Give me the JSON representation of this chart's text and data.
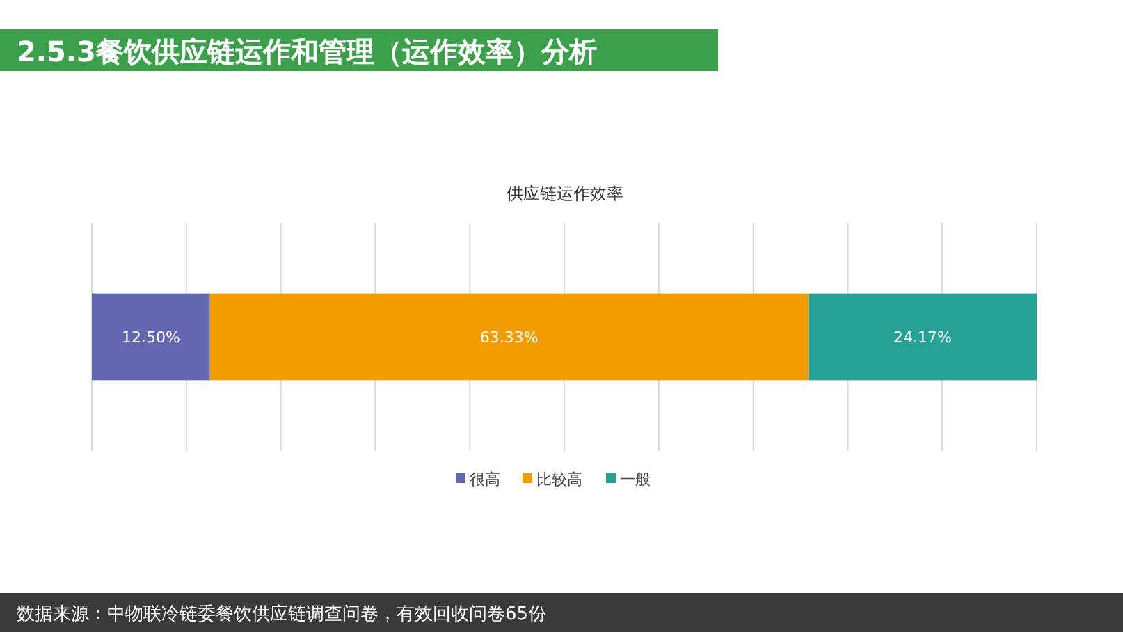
{
  "chart_data": {
    "type": "bar",
    "orientation": "horizontal",
    "stacked": true,
    "title": "2.5.3餐饮供应链运作和管理（运作效率）分析",
    "subtitle": "供应链运作效率",
    "categories": [
      null
    ],
    "series": [
      {
        "name": "很高",
        "color": "#6367b0",
        "values": [
          12.5
        ],
        "value_labels": [
          "12.50%"
        ]
      },
      {
        "name": "比较高",
        "color": "#f29c00",
        "values": [
          63.33
        ],
        "value_labels": [
          "63.33%"
        ]
      },
      {
        "name": "一般",
        "color": "#26a196",
        "values": [
          24.17
        ],
        "value_labels": [
          "24.17%"
        ]
      }
    ],
    "xlim": [
      0,
      100
    ],
    "xticks": [
      {
        "value": 0,
        "label": null
      },
      {
        "value": 10,
        "label": null
      },
      {
        "value": 20,
        "label": null
      },
      {
        "value": 30,
        "label": null
      },
      {
        "value": 40,
        "label": null
      },
      {
        "value": 50,
        "label": null
      },
      {
        "value": 60,
        "label": null
      },
      {
        "value": 70,
        "label": null
      },
      {
        "value": 80,
        "label": null
      },
      {
        "value": 90,
        "label": null
      },
      {
        "value": 100,
        "label": null
      }
    ],
    "grid": "x",
    "legend": "bottom",
    "annotations": [
      "数据来源：中物联冷链委餐饮供应链调查问卷，有效回收问卷65份"
    ]
  }
}
